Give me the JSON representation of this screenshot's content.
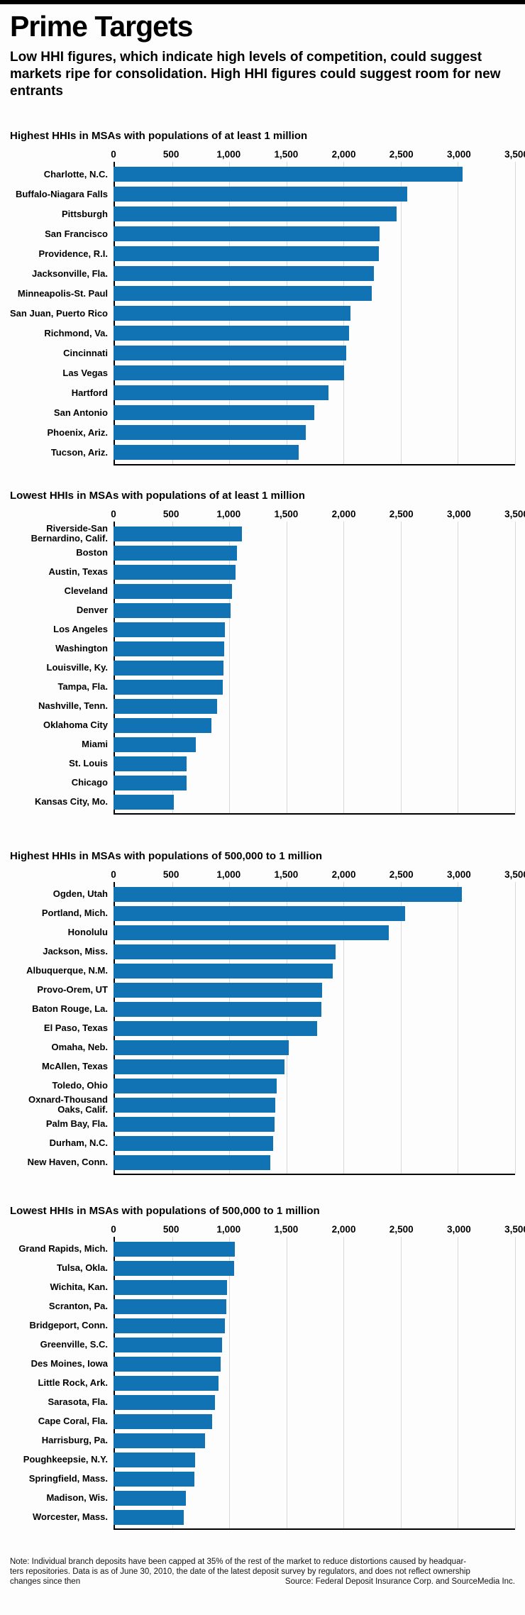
{
  "header": {
    "title": "Prime Targets",
    "subtitle": "Low HHI figures, which indicate high levels of competition, could suggest markets ripe for consolidation. High HHI figures could suggest room for new entrants"
  },
  "axis": {
    "ticks": [
      "0",
      "500",
      "1,000",
      "1,500",
      "2,000",
      "2,500",
      "3,000",
      "3,500"
    ],
    "tick_values": [
      0,
      500,
      1000,
      1500,
      2000,
      2500,
      3000,
      3500
    ],
    "max": 3500
  },
  "colors": {
    "bar": "#1173b4",
    "gridline": "#d9d9d9",
    "axis_line": "#000000",
    "top_bar": "#000000"
  },
  "chart_data": [
    {
      "type": "bar",
      "orientation": "horizontal",
      "title": "Highest HHIs in MSAs with populations of at least 1 million",
      "xlim": [
        0,
        3500
      ],
      "grid": true,
      "categories": [
        "Charlotte, N.C.",
        "Buffalo-Niagara Falls",
        "Pittsburgh",
        "San Francisco",
        "Providence, R.I.",
        "Jacksonville, Fla.",
        "Minneapolis-St. Paul",
        "San Juan, Puerto Rico",
        "Richmond, Va.",
        "Cincinnati",
        "Las Vegas",
        "Hartford",
        "San Antonio",
        "Phoenix, Ariz.",
        "Tucson, Ariz."
      ],
      "values": [
        3045,
        2560,
        2465,
        2320,
        2310,
        2270,
        2250,
        2065,
        2050,
        2030,
        2010,
        1875,
        1750,
        1675,
        1615
      ]
    },
    {
      "type": "bar",
      "orientation": "horizontal",
      "title": "Lowest HHIs in MSAs with populations of at least 1 million",
      "xlim": [
        0,
        3500
      ],
      "grid": true,
      "categories": [
        "Riverside-San Bernardino, Calif.",
        "Boston",
        "Austin, Texas",
        "Cleveland",
        "Denver",
        "Los Angeles",
        "Washington",
        "Louisville, Ky.",
        "Tampa, Fla.",
        "Nashville, Tenn.",
        "Oklahoma City",
        "Miami",
        "St. Louis",
        "Chicago",
        "Kansas City, Mo."
      ],
      "values": [
        1120,
        1075,
        1065,
        1030,
        1020,
        970,
        965,
        960,
        955,
        905,
        855,
        720,
        640,
        635,
        525
      ]
    },
    {
      "type": "bar",
      "orientation": "horizontal",
      "title": "Highest HHIs in MSAs with populations of 500,000 to 1 million",
      "xlim": [
        0,
        3500
      ],
      "grid": true,
      "categories": [
        "Ogden, Utah",
        "Portland, Mich.",
        "Honolulu",
        "Jackson, Miss.",
        "Albuquerque, N.M.",
        "Provo-Orem, UT",
        "Baton Rouge, La.",
        "El Paso, Texas",
        "Omaha, Neb.",
        "McAllen, Texas",
        "Toledo, Ohio",
        "Oxnard-Thousand Oaks, Calif.",
        "Palm Bay, Fla.",
        "Durham, N.C.",
        "New Haven, Conn."
      ],
      "values": [
        3035,
        2540,
        2400,
        1935,
        1910,
        1815,
        1810,
        1775,
        1525,
        1490,
        1420,
        1410,
        1405,
        1390,
        1365
      ]
    },
    {
      "type": "bar",
      "orientation": "horizontal",
      "title": "Lowest HHIs in MSAs with populations of 500,000 to 1 million",
      "xlim": [
        0,
        3500
      ],
      "grid": true,
      "categories": [
        "Grand Rapids, Mich.",
        "Tulsa, Okla.",
        "Wichita, Kan.",
        "Scranton, Pa.",
        "Bridgeport, Conn.",
        "Greenville, S.C.",
        "Des Moines, Iowa",
        "Little Rock, Ark.",
        "Sarasota, Fla.",
        "Cape Coral, Fla.",
        "Harrisburg, Pa.",
        "Poughkeepsie, N.Y.",
        "Springfield, Mass.",
        "Madison, Wis.",
        "Worcester, Mass."
      ],
      "values": [
        1060,
        1050,
        990,
        985,
        970,
        945,
        933,
        915,
        885,
        858,
        798,
        710,
        705,
        630,
        615
      ]
    }
  ],
  "footnote": {
    "note_lines": [
      "Note: Individual branch deposits have been capped at 35% of the rest of the market to reduce distortions caused by headquar-",
      "ters repositories. Data is as of June 30, 2010, the date of the latest deposit survey by regulators, and does not reflect ownership",
      "changes since then"
    ],
    "source": "Source: Federal Deposit Insurance Corp. and SourceMedia Inc."
  }
}
